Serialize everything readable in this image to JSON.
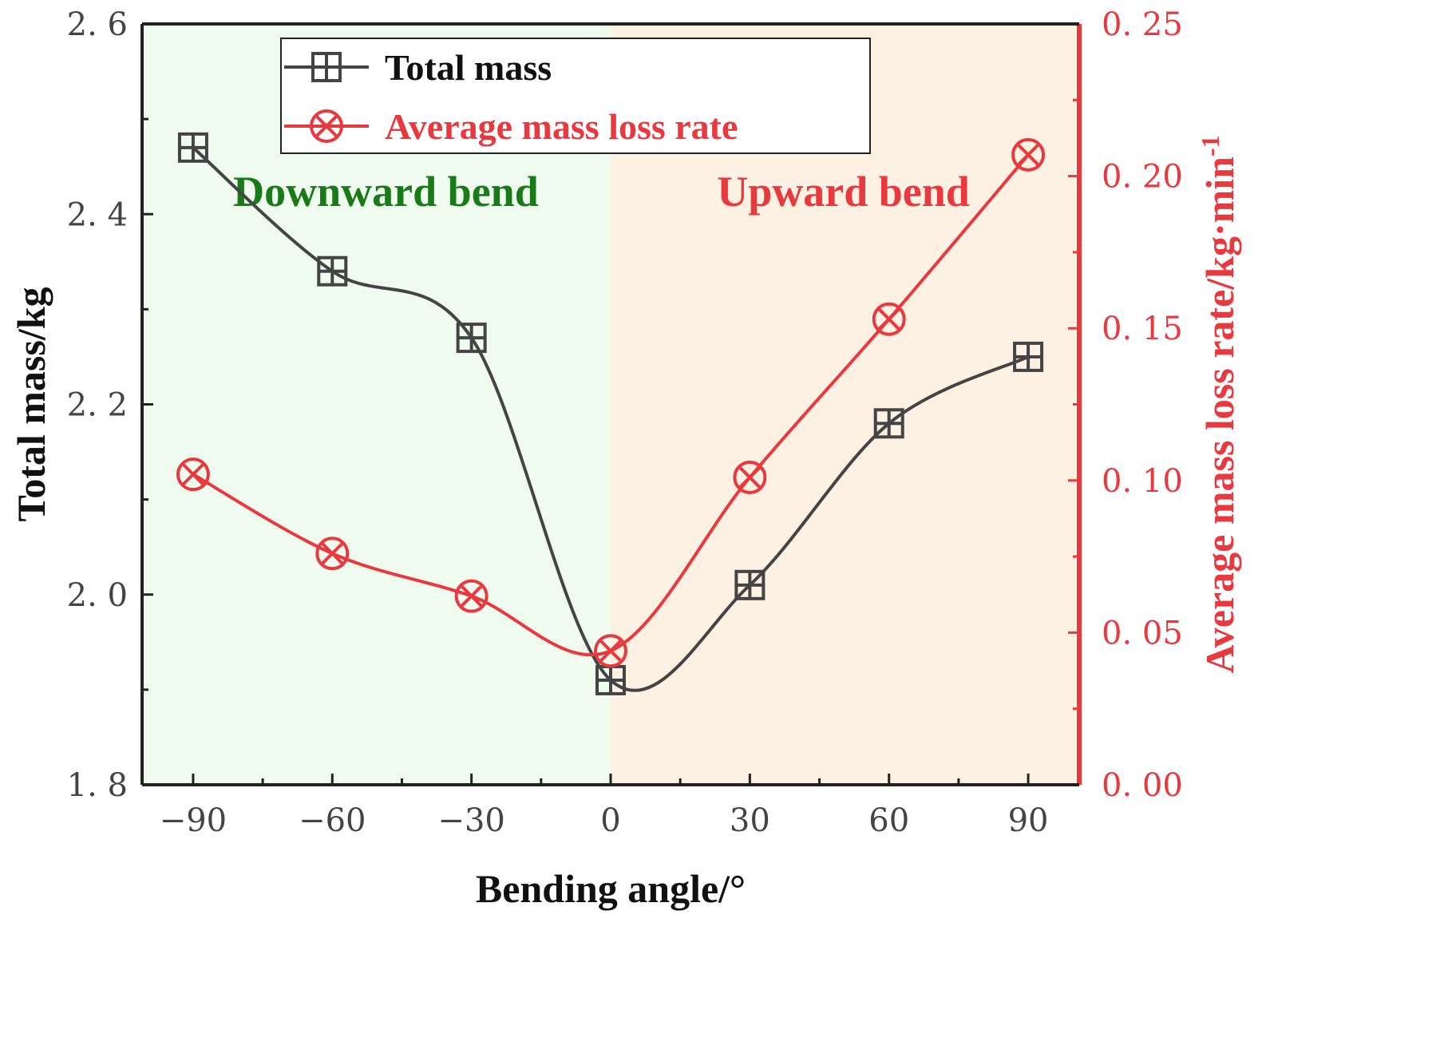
{
  "chart_data": {
    "type": "line",
    "x": [
      -90,
      -60,
      -30,
      0,
      30,
      60,
      90
    ],
    "xlabel": "Bending angle/°",
    "xticks": [
      "−90",
      "−60",
      "−30",
      "0",
      "30",
      "60",
      "90"
    ],
    "xlim": [
      -101,
      101
    ],
    "series": [
      {
        "name": "Total mass",
        "axis": "left",
        "marker": "square-plus",
        "color": "#444444",
        "values": [
          2.47,
          2.34,
          2.27,
          1.91,
          2.01,
          2.18,
          2.25
        ]
      },
      {
        "name": "Average mass loss rate",
        "axis": "right",
        "marker": "circle-x",
        "color": "#e8393f",
        "values": [
          0.102,
          0.076,
          0.062,
          0.044,
          0.101,
          0.153,
          0.207
        ]
      }
    ],
    "y_left": {
      "label": "Total mass/kg",
      "lim": [
        1.8,
        2.6
      ],
      "ticks": [
        "1. 8",
        "2. 0",
        "2. 2",
        "2. 4",
        "2. 6"
      ],
      "tick_values": [
        1.8,
        2.0,
        2.2,
        2.4,
        2.6
      ]
    },
    "y_right": {
      "label": "Average mass loss rate/kg·min",
      "label_superscript": "-1",
      "lim": [
        0.0,
        0.25
      ],
      "ticks": [
        "0. 00",
        "0. 05",
        "0. 10",
        "0. 15",
        "0. 20",
        "0. 25"
      ],
      "tick_values": [
        0.0,
        0.05,
        0.1,
        0.15,
        0.2,
        0.25
      ]
    },
    "regions": [
      {
        "label": "Downward bend",
        "from": -101,
        "to": 0,
        "fill": "#f0fbf0",
        "text_color": "#1a7a1a"
      },
      {
        "label": "Upward bend",
        "from": 0,
        "to": 101,
        "fill": "#fdf1e4",
        "text_color": "#e8393f"
      }
    ],
    "legend": {
      "position": "top-left"
    }
  }
}
